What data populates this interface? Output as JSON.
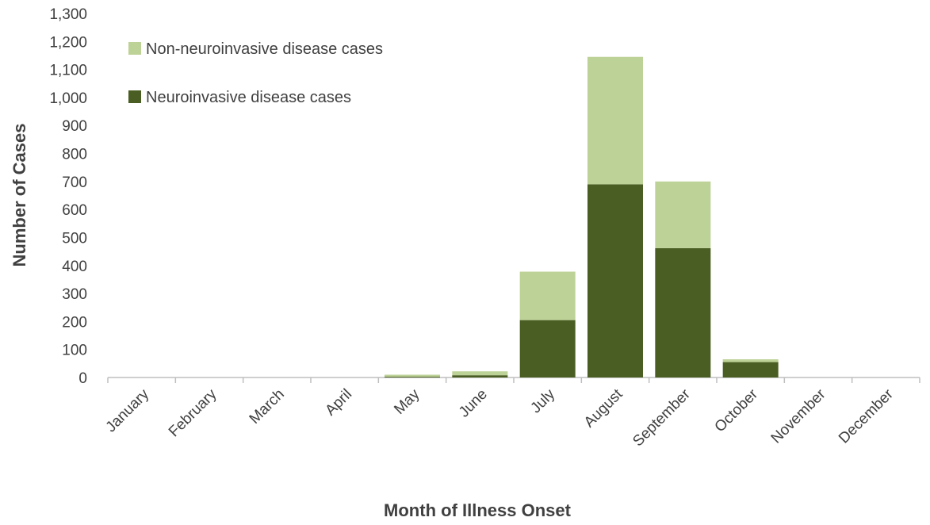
{
  "chart_data": {
    "type": "bar",
    "stacked": true,
    "title": "",
    "xlabel": "Month of Illness Onset",
    "ylabel": "Number of Cases",
    "ylim": [
      0,
      1300
    ],
    "ytick_step": 100,
    "categories": [
      "January",
      "February",
      "March",
      "April",
      "May",
      "June",
      "July",
      "August",
      "September",
      "October",
      "November",
      "December"
    ],
    "series": [
      {
        "name": "Neuroinvasive disease cases",
        "color": "#4a5e23",
        "values": [
          0,
          0,
          0,
          0,
          3,
          8,
          205,
          690,
          462,
          55,
          0,
          0
        ]
      },
      {
        "name": "Non-neuroinvasive disease cases",
        "color": "#bdd297",
        "values": [
          0,
          0,
          0,
          0,
          7,
          14,
          173,
          455,
          238,
          10,
          0,
          0
        ]
      }
    ],
    "legend_order": [
      1,
      0
    ],
    "legend_position": "top-left",
    "grid": false
  }
}
